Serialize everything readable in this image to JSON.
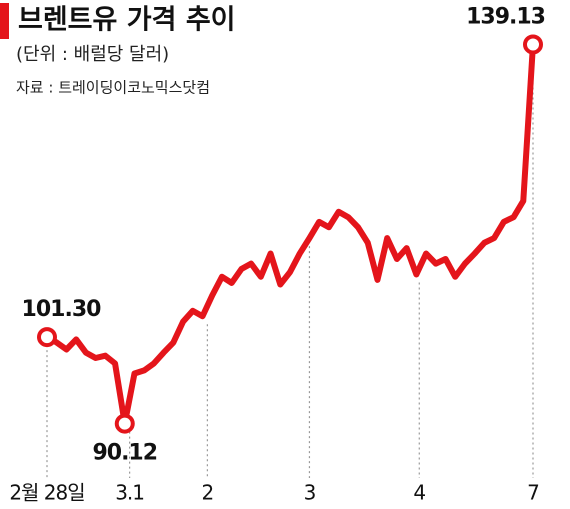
{
  "chart_data": {
    "type": "line",
    "title": "브렌트유 가격 추이",
    "subtitle": "(단위 : 배럴당 달러)",
    "source": "자료 : 트레이딩이코노믹스닷컴",
    "x": [
      0,
      1,
      2,
      3,
      4,
      5,
      6,
      7,
      8,
      9,
      10,
      11,
      12,
      13,
      14,
      15,
      16,
      17,
      18,
      19,
      20,
      21,
      22,
      23,
      24,
      25,
      26,
      27,
      28,
      29,
      30,
      31,
      32,
      33,
      34,
      35,
      36,
      37,
      38,
      39,
      40,
      41,
      42,
      43,
      44,
      45,
      46,
      47,
      48,
      49,
      50
    ],
    "series": [
      {
        "name": "브렌트유",
        "color": "#e4151b",
        "values": [
          101.3,
          100.6,
          99.7,
          101.0,
          99.3,
          98.6,
          98.9,
          97.9,
          90.12,
          96.6,
          97.0,
          97.9,
          99.3,
          100.6,
          103.3,
          104.7,
          104.0,
          106.7,
          109.1,
          108.3,
          110.1,
          110.8,
          109.1,
          112.1,
          108.1,
          109.7,
          112.1,
          114.1,
          116.2,
          115.5,
          117.5,
          116.8,
          115.5,
          113.5,
          108.7,
          114.1,
          111.4,
          112.8,
          109.4,
          112.1,
          110.8,
          111.4,
          109.1,
          110.8,
          112.1,
          113.5,
          114.1,
          116.2,
          116.8,
          118.9,
          139.13
        ],
        "value_labels": [
          "101.30",
          null,
          null,
          null,
          null,
          null,
          null,
          null,
          "90.12",
          null,
          null,
          null,
          null,
          null,
          null,
          null,
          null,
          null,
          null,
          null,
          null,
          null,
          null,
          null,
          null,
          null,
          null,
          null,
          null,
          null,
          null,
          null,
          null,
          null,
          null,
          null,
          null,
          null,
          null,
          null,
          null,
          null,
          null,
          null,
          null,
          null,
          null,
          null,
          null,
          null,
          "139.13"
        ]
      }
    ],
    "xlim": [
      0,
      50
    ],
    "xticks": [
      {
        "value": 0,
        "label": "2월 28일"
      },
      {
        "value": 8.5,
        "label": "3.1"
      },
      {
        "value": 16.5,
        "label": "2"
      },
      {
        "value": 27,
        "label": "3"
      },
      {
        "value": 38.3,
        "label": "4"
      },
      {
        "value": 50,
        "label": "7"
      }
    ],
    "ylim": [
      88,
      141
    ],
    "grid": true
  }
}
